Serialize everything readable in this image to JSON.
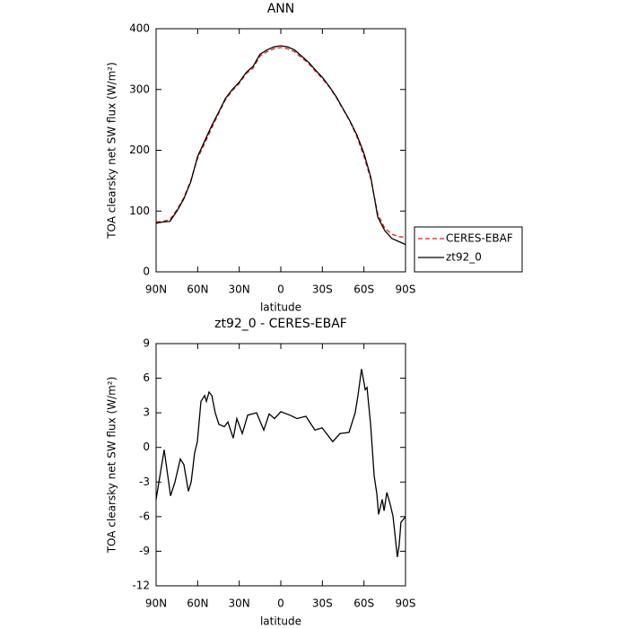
{
  "chart_data": [
    {
      "type": "line",
      "title": "ANN",
      "xlabel": "latitude",
      "ylabel": "TOA clearsky net SW flux (W/m²)",
      "x": [
        90,
        85,
        80,
        75,
        70,
        65,
        60,
        55,
        50,
        45,
        40,
        35,
        30,
        25,
        20,
        15,
        10,
        5,
        0,
        -5,
        -10,
        -15,
        -20,
        -25,
        -30,
        -35,
        -40,
        -45,
        -50,
        -55,
        -60,
        -65,
        -70,
        -75,
        -80,
        -85,
        -90
      ],
      "series": [
        {
          "name": "CERES-EBAF",
          "color": "#e41a1c",
          "linestyle": "dashed",
          "values": [
            82,
            83,
            86,
            102,
            122,
            150,
            187,
            211,
            236,
            260,
            283,
            298,
            310,
            326,
            335,
            355,
            362,
            367,
            369,
            367,
            362,
            352,
            343,
            330,
            318,
            304,
            287,
            267,
            247,
            222,
            190,
            152,
            95,
            72,
            62,
            58,
            57
          ]
        },
        {
          "name": "zt92_0",
          "color": "#000000",
          "linestyle": "solid",
          "values": [
            80,
            82,
            83,
            100,
            120,
            148,
            190,
            215,
            240,
            262,
            285,
            300,
            312,
            328,
            338,
            358,
            365,
            370,
            372,
            370,
            365,
            355,
            345,
            332,
            320,
            305,
            288,
            268,
            248,
            225,
            195,
            155,
            90,
            68,
            55,
            50,
            45
          ]
        }
      ],
      "xlim": [
        90,
        -90
      ],
      "xticks": [
        {
          "value": 90,
          "label": "90N"
        },
        {
          "value": 60,
          "label": "60N"
        },
        {
          "value": 30,
          "label": "30N"
        },
        0,
        {
          "value": -30,
          "label": "30S"
        },
        {
          "value": -60,
          "label": "60S"
        },
        {
          "value": -90,
          "label": "90S"
        }
      ],
      "ylim": [
        0,
        400
      ],
      "yticks": [
        0,
        100,
        200,
        300,
        400
      ],
      "legend": "right"
    },
    {
      "type": "line",
      "title": "zt92_0 - CERES-EBAF",
      "xlabel": "latitude",
      "ylabel": "TOA clearsky net SW flux (W/m²)",
      "x": [
        90,
        84.2,
        79.6,
        76.4,
        72.5,
        69.9,
        66.7,
        64.7,
        62.2,
        60.2,
        57.6,
        55,
        53.7,
        51.8,
        49.8,
        47.3,
        44.7,
        40.8,
        38.2,
        34.3,
        31.7,
        27.8,
        23.9,
        17.5,
        12.3,
        8.4,
        4.5,
        0,
        -6.5,
        -11.7,
        -18.1,
        -24.6,
        -29.8,
        -37.5,
        -42.7,
        -49.2,
        -53.7,
        -55.7,
        -58.3,
        -60.9,
        -62.2,
        -64.8,
        -67.4,
        -69.3,
        -70.6,
        -73.2,
        -74.5,
        -76.5,
        -79.1,
        -81,
        -82.8,
        -84.1,
        -85.4,
        -86.7,
        -90
      ],
      "series": [
        {
          "name": "zt92_0",
          "color": "#000000",
          "linestyle": "solid",
          "values": [
            -4.5,
            -0.2,
            -4.2,
            -3,
            -1,
            -1.5,
            -3.8,
            -3,
            -0.5,
            0.5,
            4,
            4.5,
            4,
            4.8,
            4.5,
            3,
            2,
            1.8,
            2.2,
            0.8,
            2.5,
            1.2,
            2.8,
            3,
            1.5,
            2.9,
            2.5,
            3.1,
            2.8,
            2.5,
            2.7,
            1.5,
            1.7,
            0.5,
            1.2,
            1.3,
            3,
            4.5,
            6.8,
            5,
            5.2,
            2,
            -2.5,
            -4,
            -5.8,
            -4.5,
            -5.5,
            -3.9,
            -5,
            -6,
            -8,
            -9.5,
            -8.5,
            -6.5,
            -6
          ]
        }
      ],
      "xlim": [
        90,
        -90
      ],
      "xticks": [
        {
          "value": 90,
          "label": "90N"
        },
        {
          "value": 60,
          "label": "60N"
        },
        {
          "value": 30,
          "label": "30N"
        },
        0,
        {
          "value": -30,
          "label": "30S"
        },
        {
          "value": -60,
          "label": "60S"
        },
        {
          "value": -90,
          "label": "90S"
        }
      ],
      "ylim": [
        -12,
        9
      ],
      "yticks": [
        -12,
        -9,
        -6,
        -3,
        0,
        3,
        6,
        9
      ]
    }
  ]
}
